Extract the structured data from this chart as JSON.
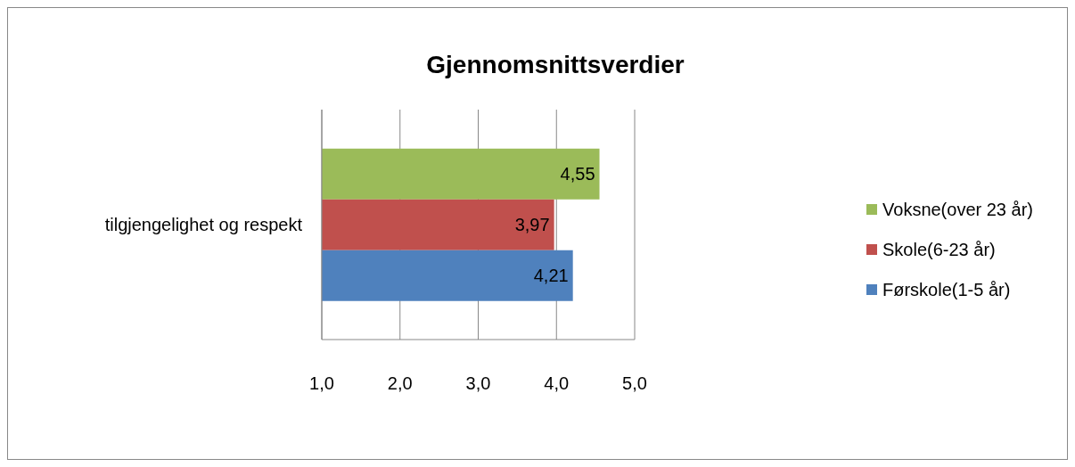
{
  "chart_data": {
    "type": "bar",
    "orientation": "horizontal",
    "title": "Gjennomsnittsverdier",
    "categories": [
      "tilgjengelighet og respekt"
    ],
    "series": [
      {
        "name": "Voksne(over 23 år)",
        "color": "#9bbb59",
        "values": [
          4.55
        ],
        "value_labels": [
          "4,55"
        ]
      },
      {
        "name": "Skole(6-23 år)",
        "color": "#c0504d",
        "values": [
          3.97
        ],
        "value_labels": [
          "3,97"
        ]
      },
      {
        "name": "Førskole(1-5 år)",
        "color": "#4f81bd",
        "values": [
          4.21
        ],
        "value_labels": [
          "4,21"
        ]
      }
    ],
    "xlim": [
      1,
      5
    ],
    "xticks": [
      {
        "value": 1,
        "label": "1,0"
      },
      {
        "value": 2,
        "label": "2,0"
      },
      {
        "value": 3,
        "label": "3,0"
      },
      {
        "value": 4,
        "label": "4,0"
      },
      {
        "value": 5,
        "label": "5,0"
      }
    ],
    "grid": "x",
    "legend": "right"
  }
}
